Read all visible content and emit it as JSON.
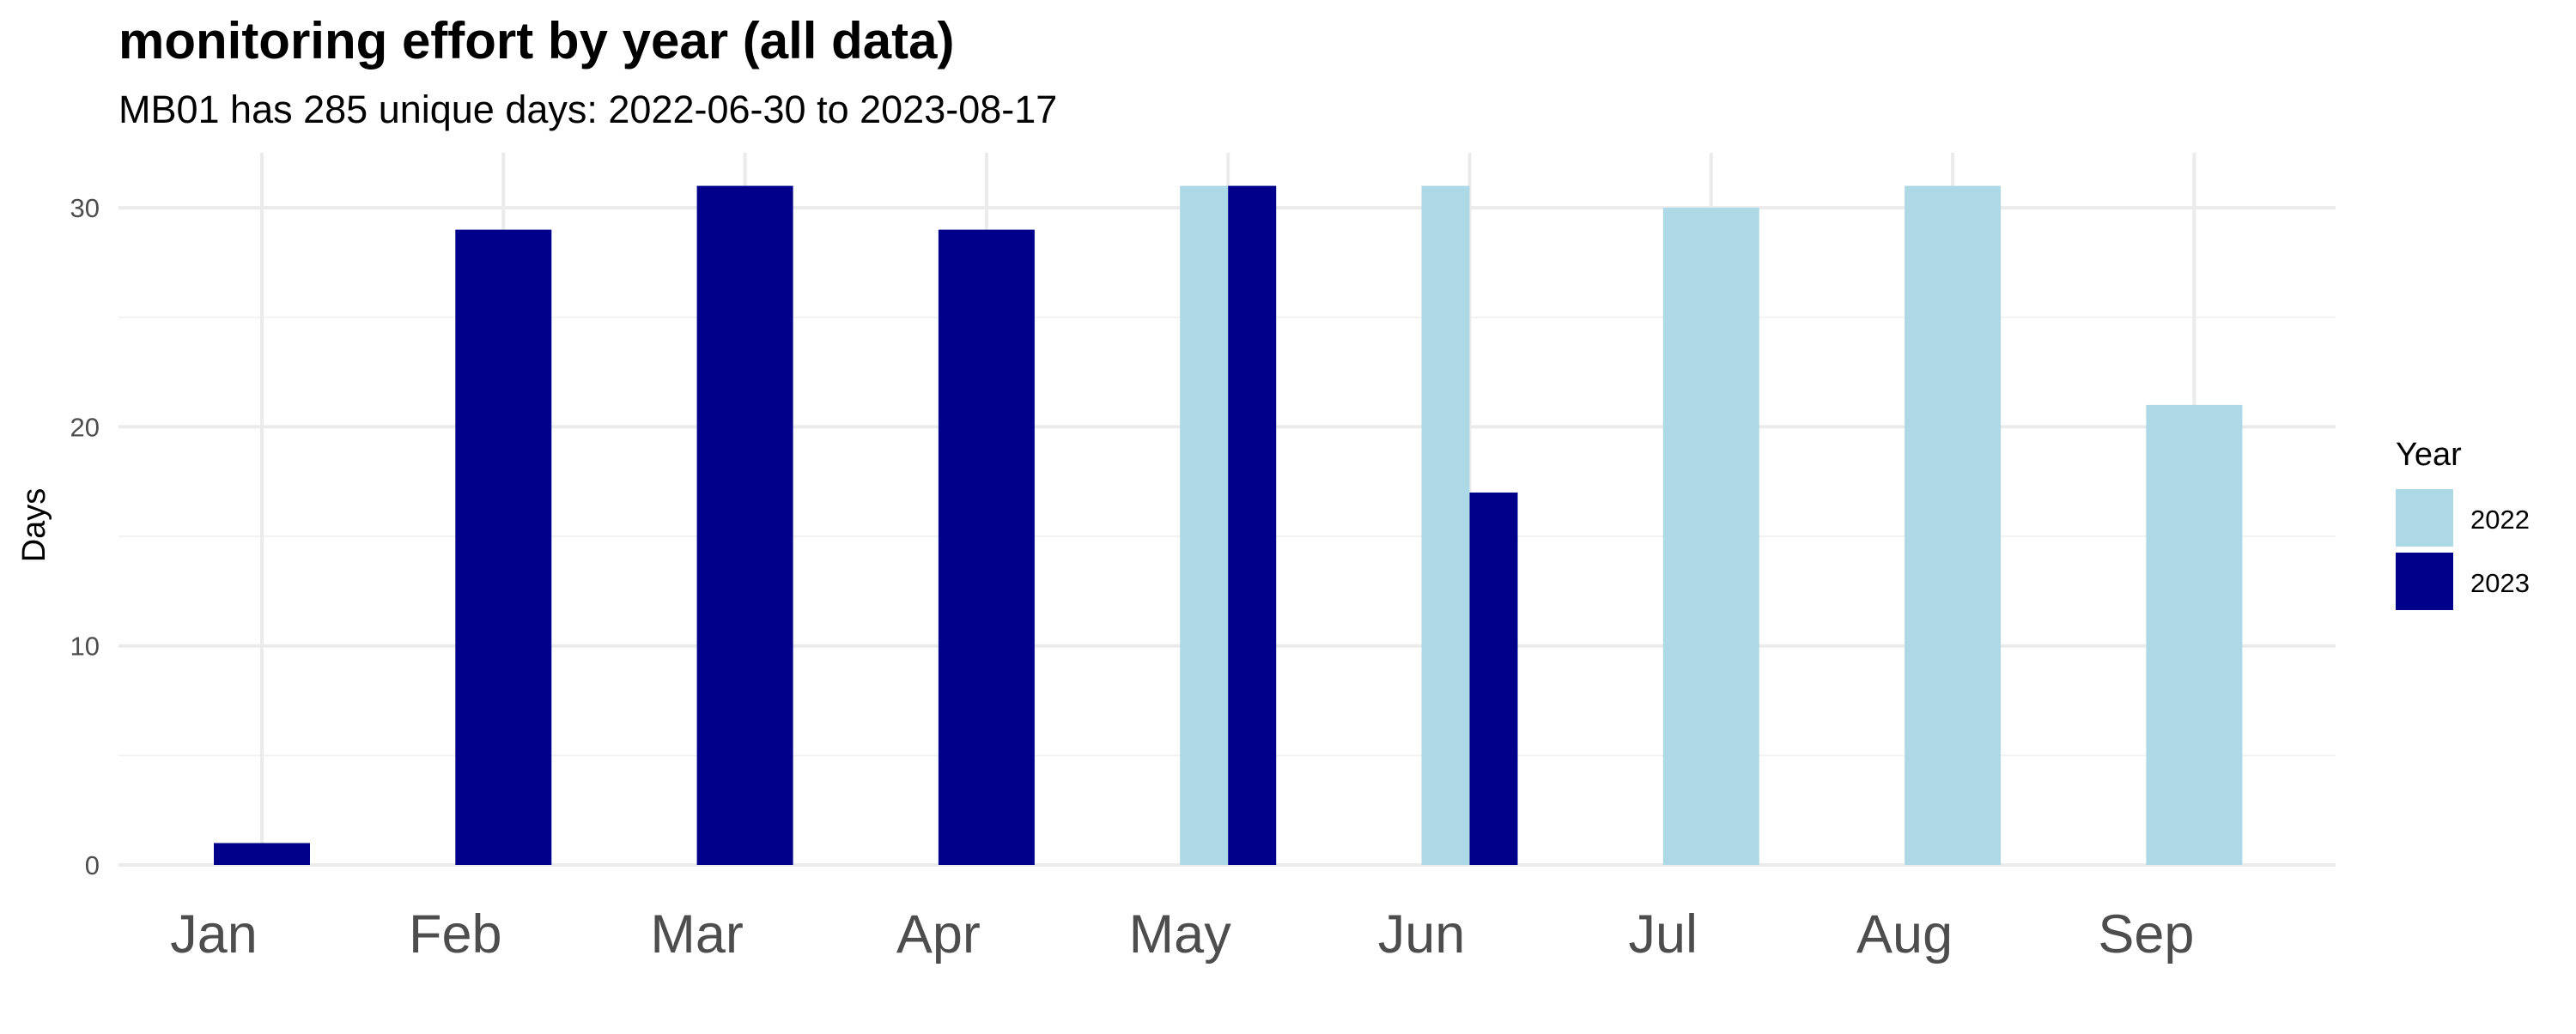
{
  "chart_data": {
    "type": "bar",
    "title": "monitoring effort by year (all data)",
    "subtitle": "MB01 has 285 unique days: 2022-06-30 to 2023-08-17",
    "xlabel": "",
    "ylabel": "Days",
    "categories": [
      "Jan",
      "Feb",
      "Mar",
      "Apr",
      "May",
      "Jun",
      "Jul",
      "Aug",
      "Sep"
    ],
    "yticks": [
      0,
      10,
      20,
      30
    ],
    "ylim": [
      0,
      32.5
    ],
    "grid": true,
    "legend": {
      "title": "Year",
      "placement": "right"
    },
    "series": [
      {
        "name": "2022",
        "color": "#ADD8E6",
        "values": [
          null,
          null,
          null,
          null,
          31,
          31,
          30,
          31,
          21
        ]
      },
      {
        "name": "2023",
        "color": "#00008B",
        "values": [
          1,
          29,
          31,
          29,
          31,
          17,
          null,
          null,
          null
        ]
      }
    ]
  }
}
